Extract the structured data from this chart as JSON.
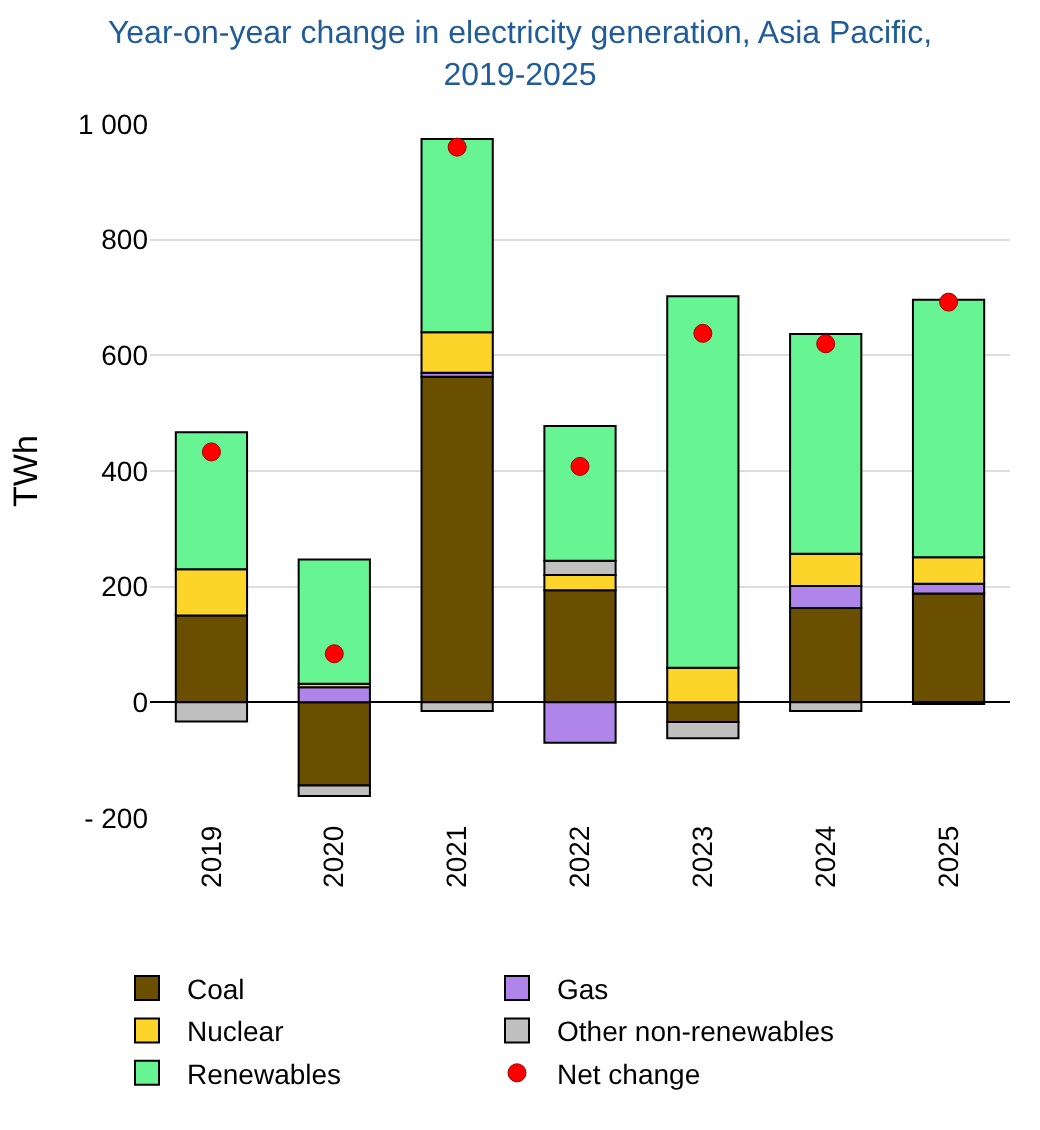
{
  "chart_data": {
    "type": "bar",
    "stacked": true,
    "title": "Year-on-year change in electricity generation, Asia Pacific,\n2019-2025",
    "ylabel": "TWh",
    "categories": [
      "2019",
      "2020",
      "2021",
      "2022",
      "2023",
      "2024",
      "2025"
    ],
    "series": [
      {
        "name": "Coal",
        "color": "#6b4f00",
        "values": [
          150,
          -144,
          563,
          194,
          -34,
          163,
          188
        ]
      },
      {
        "name": "Gas",
        "color": "#b085ea",
        "values": [
          null,
          26,
          7,
          -70,
          null,
          38,
          17
        ]
      },
      {
        "name": "Nuclear",
        "color": "#fdd42a",
        "values": [
          80,
          6,
          70,
          26,
          60,
          56,
          46
        ]
      },
      {
        "name": "Other non-renewables",
        "color": "#c0c0c0",
        "values": [
          -33,
          -18,
          -15,
          25,
          -28,
          -15,
          -3
        ]
      },
      {
        "name": "Renewables",
        "color": "#66f592",
        "values": [
          237,
          215,
          334,
          233,
          642,
          380,
          445
        ]
      },
      {
        "name": "Net change",
        "type": "scatter",
        "color": "#ff0000",
        "marker": "circle",
        "values": [
          433,
          84,
          960,
          408,
          638,
          620,
          692
        ]
      }
    ],
    "ylim": [
      -200,
      1000
    ],
    "yticks": [
      {
        "value": -200,
        "label": "- 200"
      },
      0,
      200,
      400,
      600,
      800,
      {
        "value": 1000,
        "label": "1 000"
      }
    ],
    "grid": "y",
    "legend": "bottom"
  }
}
